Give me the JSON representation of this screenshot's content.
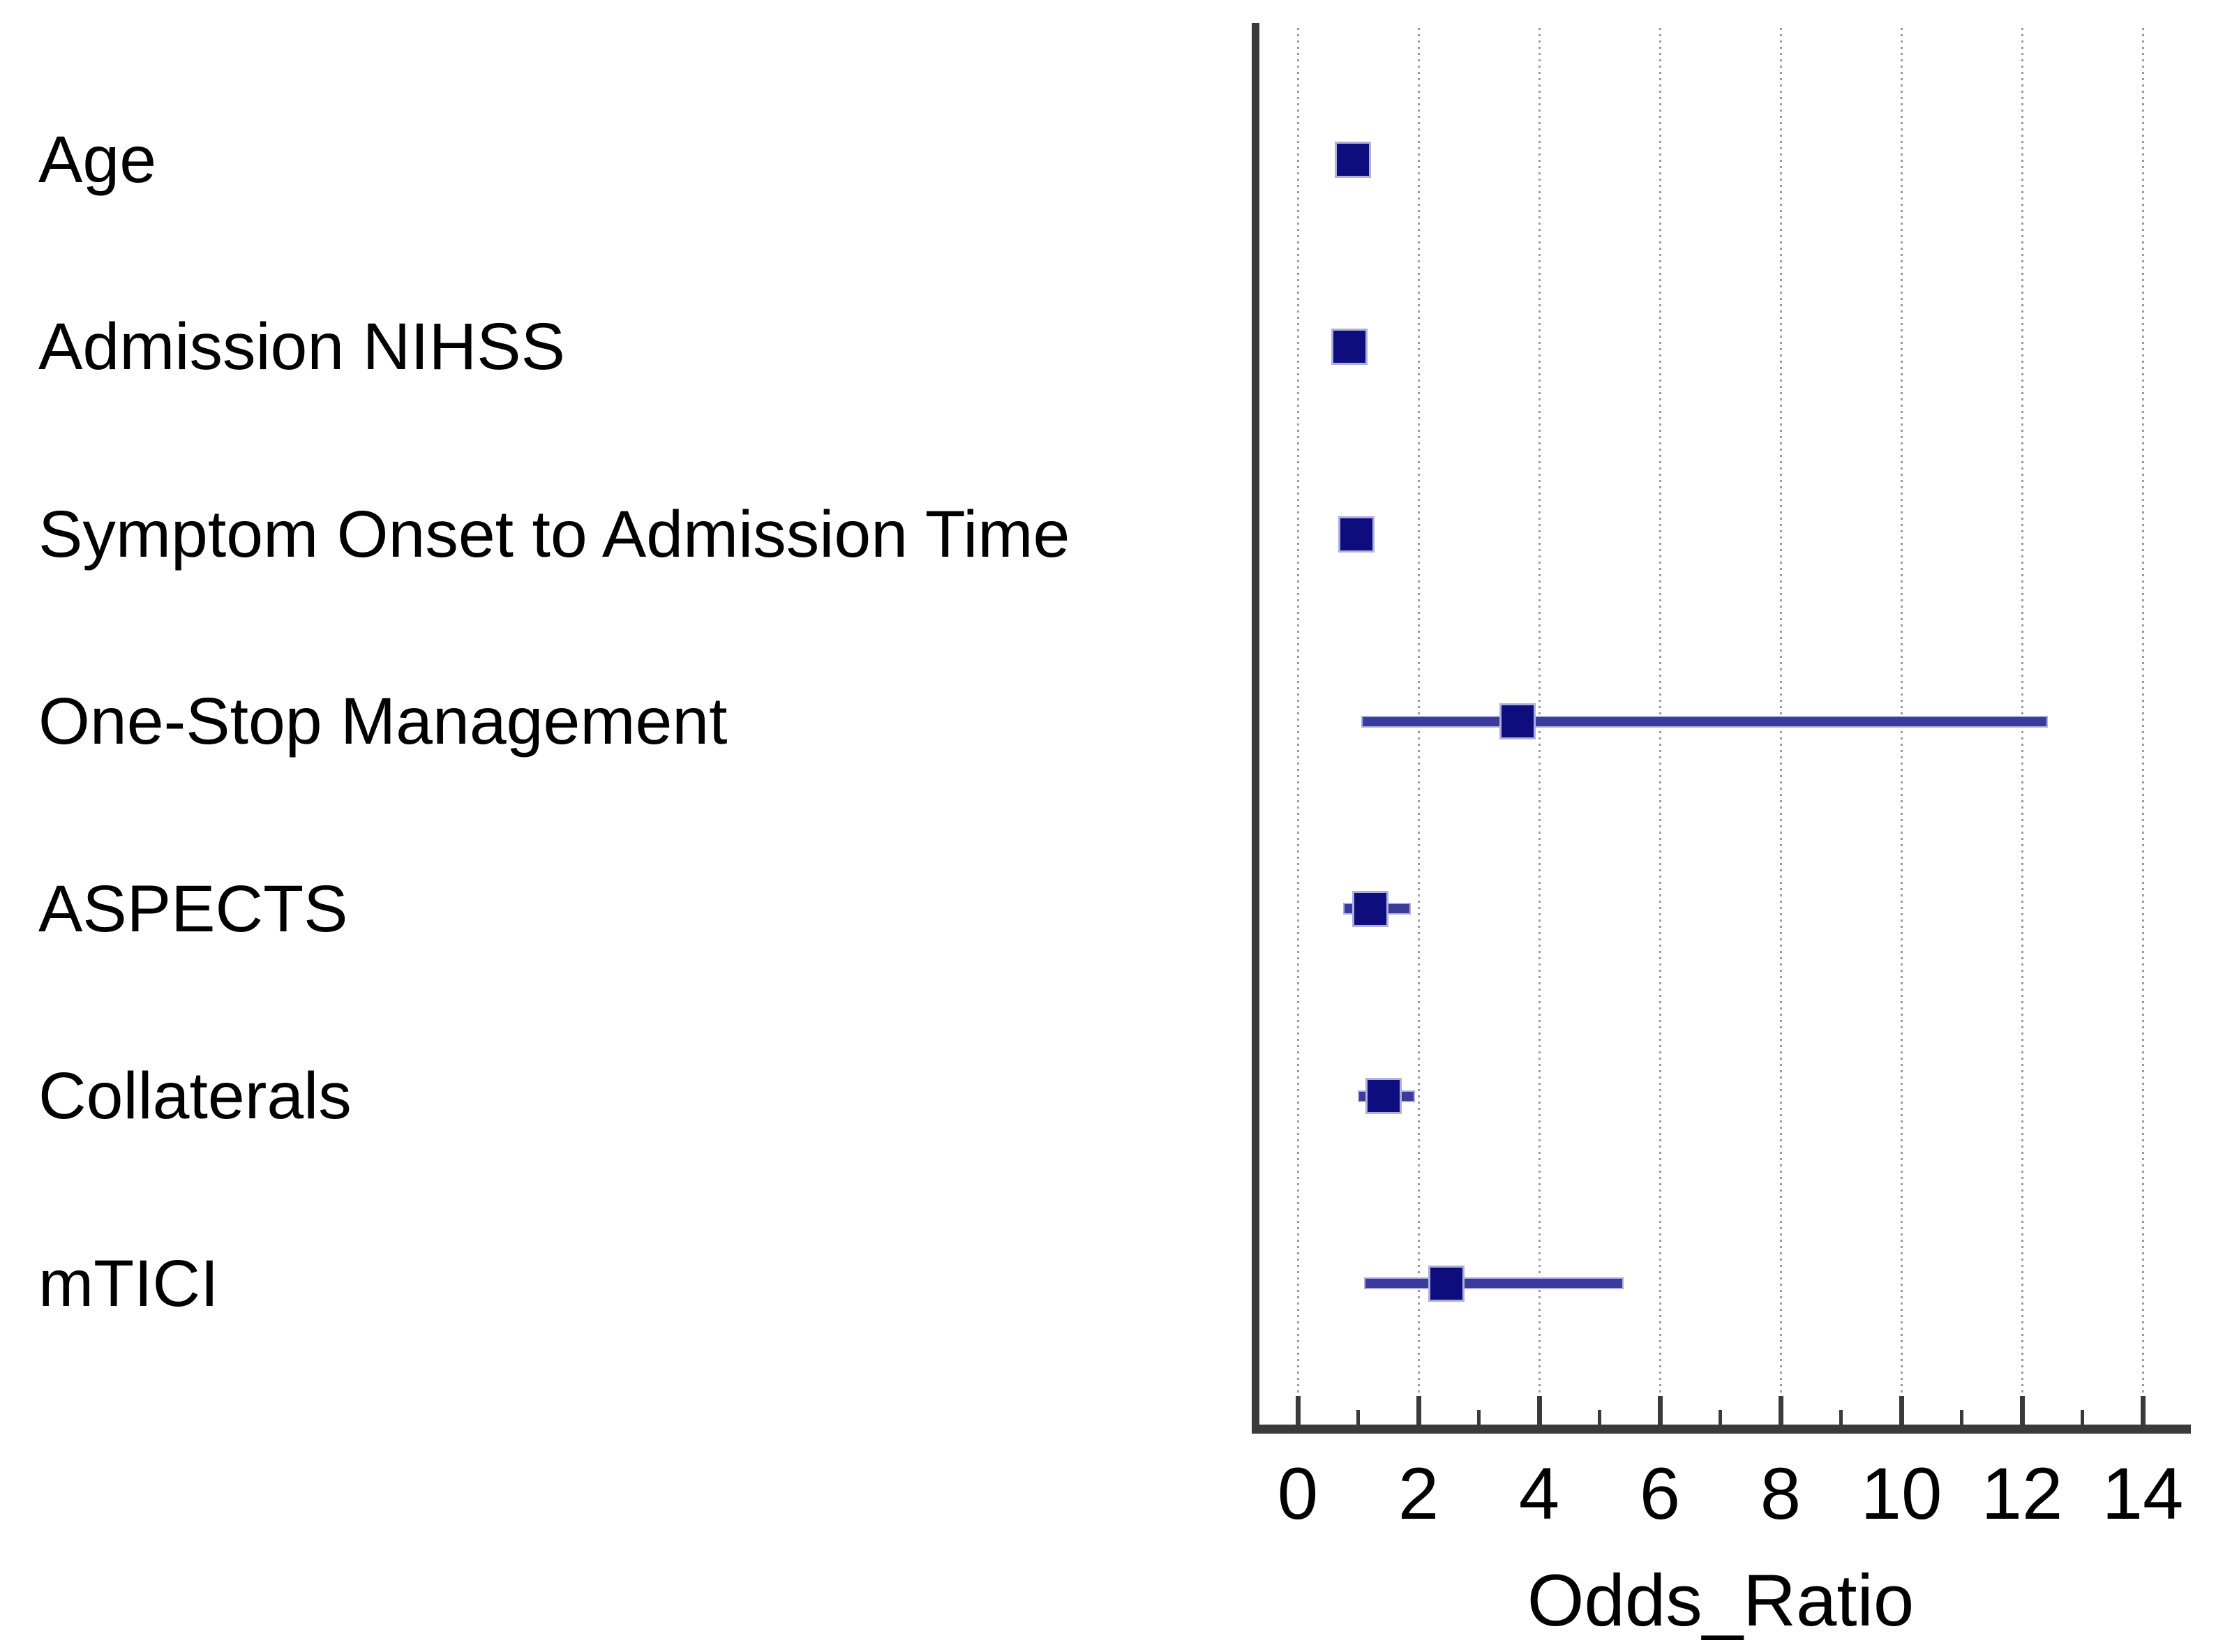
{
  "chart_data": {
    "type": "scatter",
    "subtype": "forest_plot",
    "title": "",
    "xlabel": "Odds_Ratio",
    "ylabel": "",
    "xlim": [
      -0.75,
      15.2
    ],
    "x_major_ticks": [
      0,
      2,
      4,
      6,
      8,
      10,
      12,
      14
    ],
    "x_minor_ticks": [
      1,
      3,
      5,
      7,
      9,
      11,
      13
    ],
    "grid": "vertical dotted gridlines at even tick values",
    "legend": null,
    "rows": [
      {
        "label": "Age",
        "odds_ratio": 0.91,
        "ci_low": null,
        "ci_high": null
      },
      {
        "label": "Admission NIHSS",
        "odds_ratio": 0.85,
        "ci_low": null,
        "ci_high": null
      },
      {
        "label": "Symptom Onset to Admission Time",
        "odds_ratio": 0.97,
        "ci_low": null,
        "ci_high": null
      },
      {
        "label": "One-Stop Management",
        "odds_ratio": 3.64,
        "ci_low": 1.08,
        "ci_high": 12.41
      },
      {
        "label": "ASPECTS",
        "odds_ratio": 1.2,
        "ci_low": 0.77,
        "ci_high": 1.85
      },
      {
        "label": "Collaterals",
        "odds_ratio": 1.42,
        "ci_low": 1.02,
        "ci_high": 1.92
      },
      {
        "label": "mTICI",
        "odds_ratio": 2.46,
        "ci_low": 1.12,
        "ci_high": 5.38
      }
    ],
    "colors": {
      "marker": "#0d0d7e",
      "ci_line": "#3b3b9b",
      "halo": "#b0b0dc",
      "axis": "#3a3a3a",
      "gridline": "#9a9a9a",
      "text": "#000000",
      "background": "#ffffff"
    }
  }
}
